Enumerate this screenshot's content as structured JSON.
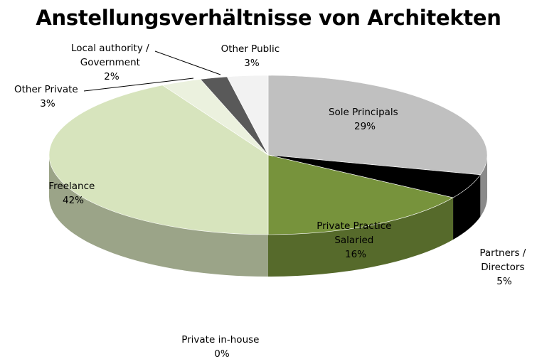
{
  "chart_data": {
    "type": "pie",
    "title": "Anstellungsverhältnisse von Architekten",
    "slices": [
      {
        "label": "Sole Principals",
        "value": 29,
        "value_label": "29%",
        "color": "#c0c0c0"
      },
      {
        "label": "Partners / Directors",
        "value": 5,
        "value_label": "5%",
        "color": "#000000"
      },
      {
        "label": "Private Practice Salaried",
        "value": 16,
        "value_label": "16%",
        "color": "#77933c"
      },
      {
        "label": "Private in-house",
        "value": 0,
        "value_label": "0%",
        "color": "#9bbb59"
      },
      {
        "label": "Freelance",
        "value": 42,
        "value_label": "42%",
        "color": "#d7e4bd"
      },
      {
        "label": "Other Private",
        "value": 3,
        "value_label": "3%",
        "color": "#ebf1de"
      },
      {
        "label": "Local authority / Government",
        "value": 2,
        "value_label": "2%",
        "color": "#595959"
      },
      {
        "label": "Other Public",
        "value": 3,
        "value_label": "3%",
        "color": "#f2f2f2"
      }
    ],
    "legend": "none",
    "style": "3d"
  },
  "label_lines": {
    "sole_principals": [
      "Sole Principals",
      "29%"
    ],
    "partners_directors": [
      "Partners /",
      "Directors",
      "5%"
    ],
    "private_practice": [
      "Private Practice",
      "Salaried",
      "16%"
    ],
    "private_inhouse": [
      "Private in-house",
      "0%"
    ],
    "freelance": [
      "Freelance",
      "42%"
    ],
    "other_private": [
      "Other Private",
      "3%"
    ],
    "local_authority": [
      "Local authority /",
      "Government",
      "2%"
    ],
    "other_public": [
      "Other Public",
      "3%"
    ]
  }
}
